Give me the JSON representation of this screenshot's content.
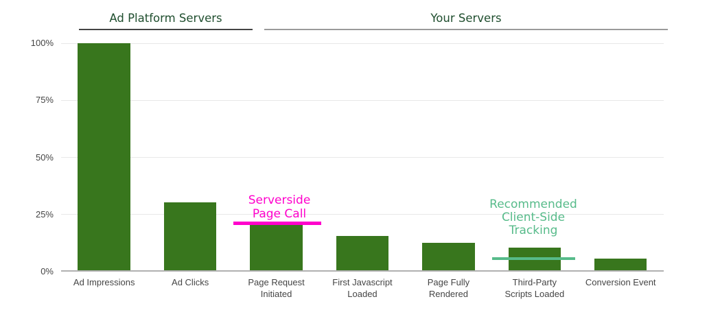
{
  "chart_data": {
    "type": "bar",
    "title": "",
    "categories": [
      "Ad Impressions",
      "Ad Clicks",
      "Page Request Initiated",
      "First Javascript Loaded",
      "Page Fully Rendered",
      "Third-Party Scripts Loaded",
      "Conversion Event"
    ],
    "category_label_lines": [
      [
        "Ad Impressions"
      ],
      [
        "Ad Clicks"
      ],
      [
        "Page Request",
        "Initiated"
      ],
      [
        "First Javascript",
        "Loaded"
      ],
      [
        "Page Fully",
        "Rendered"
      ],
      [
        "Third-Party",
        "Scripts Loaded"
      ],
      [
        "Conversion Event"
      ]
    ],
    "values": [
      100,
      30,
      20,
      15,
      12,
      10,
      5
    ],
    "unit": "%",
    "ylim": [
      0,
      100
    ],
    "yticks": [
      {
        "value": 100,
        "label": "100%"
      },
      {
        "value": 75,
        "label": "75%"
      },
      {
        "value": 50,
        "label": "50%"
      },
      {
        "value": 25,
        "label": "25%"
      },
      {
        "value": 0,
        "label": "0%"
      }
    ],
    "grid": true,
    "legend": "none",
    "bar_color": "#38761d",
    "sections": [
      {
        "label": "Ad Platform Servers",
        "covers_categories": [
          "Ad Impressions",
          "Ad Clicks"
        ],
        "text_color": "#1f4e2e",
        "underline_color": "#444444"
      },
      {
        "label": "Your Servers",
        "covers_categories": [
          "Page Request Initiated",
          "First Javascript Loaded",
          "Page Fully Rendered",
          "Third-Party Scripts Loaded",
          "Conversion Event"
        ],
        "text_color": "#1f4e2e",
        "underline_color": "#9a9a9a"
      }
    ],
    "annotations": [
      {
        "name": "serverside-page-call",
        "lines": [
          "Serverside",
          "Page Call"
        ],
        "color": "#ff00cc",
        "rule_value_pct": 20,
        "target_category": "Page Request Initiated"
      },
      {
        "name": "recommended-client-side-tracking",
        "lines": [
          "Recommended",
          "Client-Side",
          "Tracking"
        ],
        "color": "#57bb8a",
        "rule_value_pct": 6,
        "target_category": "Third-Party Scripts Loaded"
      }
    ]
  },
  "colors": {
    "background": "#ffffff",
    "axis_label": "#444444",
    "gridline": "#e8e8e8",
    "baseline": "#b0b0b0"
  }
}
